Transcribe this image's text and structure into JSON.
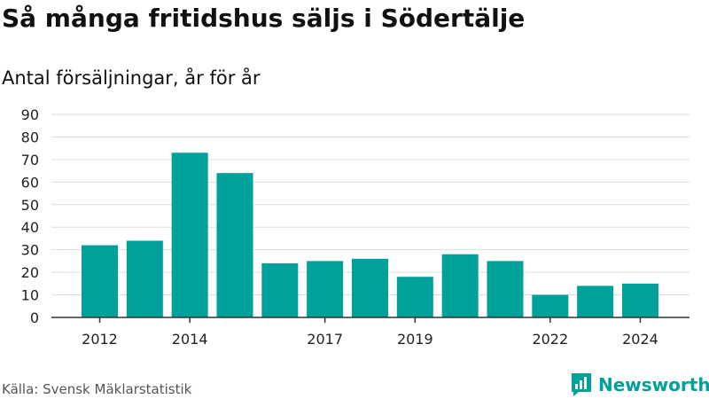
{
  "title": "Så många fritidshus säljs i Södertälje",
  "subtitle": "Antal försäljningar, år för år",
  "source": "Källa: Svensk Mäklarstatistik",
  "brand": {
    "name": "Newsworthy",
    "color": "#00A19A",
    "icon": "newsworthy-logo-icon"
  },
  "colors": {
    "bar": "#00A19A",
    "grid": "#dddddd",
    "axis": "#333333",
    "text": "#222222"
  },
  "chart_data": {
    "type": "bar",
    "categories": [
      "2012",
      "2013",
      "2014",
      "2015",
      "2016",
      "2017",
      "2018",
      "2019",
      "2020",
      "2021",
      "2022",
      "2023",
      "2024"
    ],
    "values": [
      32,
      34,
      73,
      64,
      24,
      25,
      26,
      18,
      28,
      25,
      10,
      14,
      15
    ],
    "x_tick_labels": [
      "2012",
      "",
      "2014",
      "",
      "",
      "2017",
      "",
      "2019",
      "",
      "",
      "2022",
      "",
      "2024"
    ],
    "y_ticks": [
      0,
      10,
      20,
      30,
      40,
      50,
      60,
      70,
      80,
      90
    ],
    "ylim": [
      0,
      90
    ],
    "grid": true,
    "legend": "none"
  }
}
